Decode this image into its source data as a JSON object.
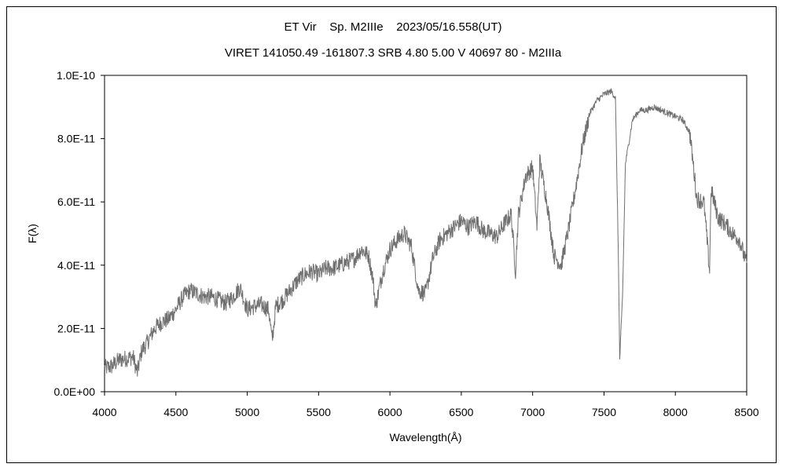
{
  "chart_data": {
    "type": "line",
    "title": "ET Vir    Sp. M2IIIe    2023/05/16.558(UT)",
    "subtitle": "VIRET 141050.49 -161807.3 SRB 4.80 5.00 V 40697 80 - M2IIIa",
    "xlabel": "Wavelength(Å)",
    "ylabel": "F(λ)",
    "xlim": [
      4000,
      8500
    ],
    "ylim": [
      0,
      1e-10
    ],
    "x_ticks": [
      4000,
      4500,
      5000,
      5500,
      6000,
      6500,
      7000,
      7500,
      8000,
      8500
    ],
    "x_tick_labels": [
      "4000",
      "4500",
      "5000",
      "5500",
      "6000",
      "6500",
      "7000",
      "7500",
      "8000",
      "8500"
    ],
    "y_ticks": [
      0,
      2e-11,
      4e-11,
      6e-11,
      8e-11,
      1e-10
    ],
    "y_tick_labels": [
      "0.0E+00",
      "2.0E-11",
      "4.0E-11",
      "6.0E-11",
      "8.0E-11",
      "1.0E-10"
    ],
    "grid": false,
    "legend": "none",
    "series_color": "#707070",
    "units": "1e-11",
    "x": [
      4000,
      4050,
      4100,
      4150,
      4200,
      4230,
      4260,
      4300,
      4350,
      4400,
      4450,
      4500,
      4550,
      4600,
      4650,
      4700,
      4750,
      4800,
      4850,
      4900,
      4950,
      5000,
      5050,
      5100,
      5150,
      5175,
      5200,
      5250,
      5300,
      5350,
      5400,
      5450,
      5500,
      5550,
      5600,
      5650,
      5700,
      5750,
      5800,
      5850,
      5880,
      5900,
      5950,
      6000,
      6050,
      6100,
      6150,
      6200,
      6250,
      6300,
      6350,
      6400,
      6450,
      6500,
      6550,
      6600,
      6650,
      6700,
      6750,
      6800,
      6850,
      6880,
      6900,
      6950,
      7000,
      7030,
      7050,
      7100,
      7150,
      7200,
      7250,
      7300,
      7350,
      7400,
      7450,
      7500,
      7550,
      7580,
      7600,
      7610,
      7630,
      7650,
      7700,
      7750,
      7800,
      7850,
      7900,
      7950,
      8000,
      8050,
      8100,
      8130,
      8150,
      8200,
      8240,
      8250,
      8300,
      8350,
      8400,
      8450,
      8500
    ],
    "values": [
      0.75,
      0.8,
      1.0,
      1.05,
      1.1,
      0.6,
      1.3,
      1.55,
      2.0,
      2.2,
      2.3,
      2.6,
      3.0,
      3.2,
      3.1,
      3.0,
      3.0,
      2.9,
      2.8,
      3.0,
      3.3,
      2.6,
      2.7,
      2.75,
      2.6,
      1.6,
      2.7,
      2.9,
      3.2,
      3.5,
      3.7,
      3.8,
      3.7,
      3.9,
      3.9,
      4.0,
      4.1,
      4.2,
      4.5,
      4.3,
      3.6,
      2.7,
      3.8,
      4.5,
      4.8,
      5.0,
      4.6,
      3.2,
      3.1,
      4.2,
      4.8,
      5.0,
      5.2,
      5.4,
      5.2,
      5.4,
      5.1,
      5.0,
      4.9,
      5.3,
      5.6,
      3.8,
      5.6,
      6.8,
      7.1,
      5.2,
      7.3,
      6.0,
      4.3,
      4.0,
      5.1,
      6.4,
      7.8,
      8.8,
      9.2,
      9.4,
      9.5,
      9.3,
      4.5,
      1.0,
      3.0,
      7.2,
      8.6,
      8.9,
      8.9,
      9.0,
      8.9,
      8.8,
      8.7,
      8.6,
      8.2,
      7.0,
      6.1,
      6.0,
      3.8,
      6.4,
      5.5,
      5.3,
      5.0,
      4.8,
      4.0
    ]
  }
}
